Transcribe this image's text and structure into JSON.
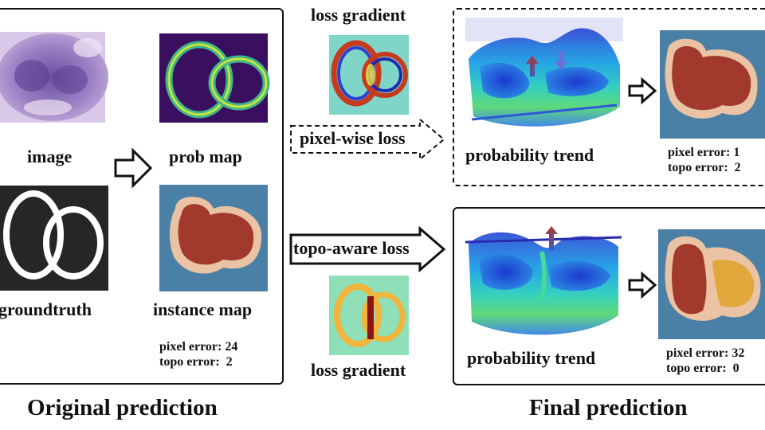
{
  "left_panel": {
    "title": "Original prediction",
    "image_label": "image",
    "prob_label": "prob map",
    "gt_label": "groundtruth",
    "inst_label": "instance map",
    "pixel_error": "pixel error: 24",
    "topo_error": "topo error:  2"
  },
  "middle": {
    "top_gradient_label": "loss gradient",
    "pixel_loss_label": "pixel-wise loss",
    "topo_loss_label": "topo-aware loss",
    "bottom_gradient_label": "loss gradient"
  },
  "right_top": {
    "trend_label": "probability trend",
    "pixel_error": "pixel error: 1",
    "topo_error": "topo error:  2"
  },
  "right_bottom": {
    "trend_label": "probability trend",
    "pixel_error": "pixel error: 32",
    "topo_error": "topo error:  0"
  },
  "right_title": "Final prediction",
  "colors": {
    "instance_bg": "#4a7fa6",
    "instance_border": "#eac3a5",
    "instance_red": "#a13a2c",
    "instance_yellow": "#e0a83a"
  }
}
